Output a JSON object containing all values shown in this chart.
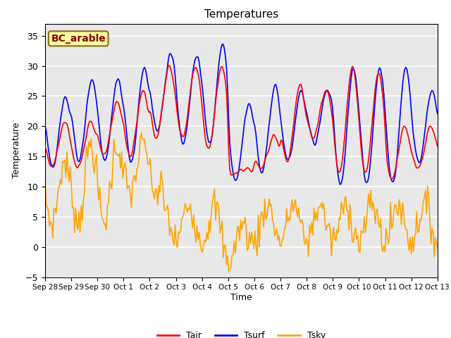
{
  "title": "Temperatures",
  "xlabel": "Time",
  "ylabel": "Temperature",
  "annotation_text": "BC_arable",
  "annotation_color": "#8B0000",
  "annotation_bg": "#FFFFA0",
  "annotation_border": "#8B6914",
  "line_tair_color": "#FF0000",
  "line_tsurf_color": "#0000FF",
  "line_tsky_color": "#FFA500",
  "ylim": [
    -5,
    37
  ],
  "yticks": [
    -5,
    0,
    5,
    10,
    15,
    20,
    25,
    30,
    35
  ],
  "bg_color": "#E8E8E8",
  "fig_bg": "#FFFFFF",
  "grid_color": "#FFFFFF",
  "xtick_labels": [
    "Sep 28",
    "Sep 29",
    "Sep 30",
    "Oct 1",
    "Oct 2",
    "Oct 3",
    "Oct 4",
    "Oct 5",
    "Oct 6",
    "Oct 7",
    "Oct 8",
    "Oct 9",
    "Oct 10",
    "Oct 11",
    "Oct 12",
    "Oct 13"
  ],
  "legend_labels": [
    "Tair",
    "Tsurf",
    "Tsky"
  ],
  "line_width": 1.2,
  "tair_peaks": [
    21,
    21,
    24,
    26,
    30,
    30,
    30,
    13,
    18,
    27,
    26,
    30,
    29,
    20,
    20
  ],
  "tair_mins": [
    13,
    13,
    15,
    15,
    18,
    18,
    16,
    12,
    13,
    14,
    18,
    12,
    12,
    11,
    13
  ],
  "tsurf_peaks": [
    25,
    28,
    28,
    30,
    32,
    32,
    34,
    24,
    27,
    26,
    26,
    30,
    30,
    30,
    26
  ],
  "tsurf_mins": [
    13,
    14,
    14,
    14,
    19,
    17,
    17,
    11,
    12,
    14,
    17,
    10,
    10,
    10,
    14
  ],
  "tsky_phase1_peaks": [
    14,
    17,
    17,
    17,
    14
  ],
  "tsky_phase1_mins": [
    4,
    4,
    4,
    9,
    9
  ],
  "tsky_phase2_base": 4,
  "tsky_phase2_amp": 3,
  "tsky_phase2_min": -4,
  "n_days": 15,
  "n_points": 360,
  "phase_change_day": 4.5
}
